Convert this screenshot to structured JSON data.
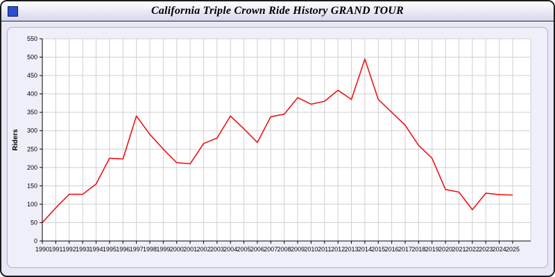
{
  "window": {
    "title": "California Triple Crown Ride History GRAND TOUR",
    "icon": "blue-square-icon"
  },
  "chart_data": {
    "type": "line",
    "title": "California Triple Crown Ride History GRAND TOUR",
    "xlabel": "",
    "ylabel": "Riders",
    "x": [
      1990,
      1991,
      1992,
      1993,
      1994,
      1995,
      1996,
      1997,
      1998,
      1999,
      2000,
      2001,
      2002,
      2003,
      2004,
      2005,
      2006,
      2007,
      2008,
      2009,
      2010,
      2011,
      2012,
      2013,
      2014,
      2015,
      2016,
      2017,
      2018,
      2019,
      2020,
      2021,
      2022,
      2023,
      2024,
      2025
    ],
    "values": [
      50,
      90,
      127,
      127,
      155,
      225,
      223,
      340,
      290,
      250,
      213,
      210,
      265,
      280,
      340,
      305,
      268,
      338,
      345,
      390,
      372,
      380,
      410,
      385,
      495,
      385,
      350,
      315,
      260,
      225,
      140,
      133,
      85,
      130,
      126,
      125
    ],
    "ylim": [
      0,
      550
    ],
    "ytick_step": 50,
    "grid": true,
    "legend": "none",
    "line_color": "#ee1111",
    "plot_bg": "#ffffff",
    "grid_color": "#cfcfcf"
  }
}
